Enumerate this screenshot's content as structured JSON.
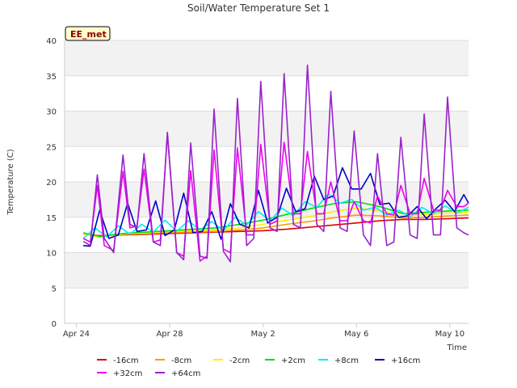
{
  "chart_data": {
    "type": "line",
    "title": "Soil/Water Temperature Set 1",
    "xlabel": "Time",
    "ylabel": "Temperature (C)",
    "badge": "EE_met",
    "x_unit": "day",
    "xlim": [
      -0.5,
      16.8
    ],
    "ylim": [
      0,
      40
    ],
    "yticks": [
      0,
      5,
      10,
      15,
      20,
      25,
      30,
      35,
      40
    ],
    "xticks": [
      {
        "label": "Apr 24",
        "day": 0
      },
      {
        "label": "Apr 28",
        "day": 4
      },
      {
        "label": "May 2",
        "day": 8
      },
      {
        "label": "May 6",
        "day": 12
      },
      {
        "label": "May 10",
        "day": 16
      }
    ],
    "grid": true,
    "legend_position": "bottom",
    "series": [
      {
        "name": "-16cm",
        "color": "#dd0000",
        "x": [
          0.3,
          1,
          2,
          3,
          4,
          5,
          6,
          7,
          8,
          9,
          10,
          11,
          12,
          13,
          14,
          15,
          16,
          16.8
        ],
        "y": [
          12.6,
          12.4,
          12.5,
          12.6,
          12.7,
          12.8,
          12.9,
          13.0,
          13.1,
          13.3,
          13.6,
          13.9,
          14.2,
          14.5,
          14.7,
          14.7,
          14.8,
          14.9
        ]
      },
      {
        "name": "-8cm",
        "color": "#ff9900",
        "x": [
          0.3,
          1,
          2,
          3,
          4,
          5,
          6,
          7,
          8,
          9,
          10,
          11,
          12,
          13,
          14,
          15,
          16,
          16.8
        ],
        "y": [
          12.6,
          12.3,
          12.6,
          12.7,
          12.8,
          12.9,
          13.0,
          13.2,
          13.5,
          14.0,
          14.4,
          14.9,
          15.3,
          15.2,
          14.9,
          15.0,
          15.2,
          15.3
        ]
      },
      {
        "name": "-2cm",
        "color": "#ffee00",
        "x": [
          0.3,
          1,
          2,
          3,
          4,
          5,
          6,
          7,
          8,
          9,
          10,
          11,
          12,
          13,
          14,
          15,
          16,
          16.8
        ],
        "y": [
          12.6,
          12.2,
          12.6,
          12.8,
          13.0,
          13.1,
          13.2,
          13.5,
          14.0,
          14.6,
          15.1,
          15.8,
          16.3,
          15.9,
          15.1,
          15.4,
          15.6,
          15.7
        ]
      },
      {
        "name": "+2cm",
        "color": "#00dd00",
        "x": [
          0.3,
          1,
          2,
          3,
          4,
          5,
          6,
          7,
          8,
          9,
          10,
          11,
          12,
          13,
          14,
          15,
          16,
          16.8
        ],
        "y": [
          12.8,
          12.3,
          12.7,
          12.9,
          13.1,
          13.3,
          13.5,
          14.0,
          14.6,
          15.4,
          16.2,
          16.9,
          17.2,
          16.5,
          15.5,
          15.7,
          15.9,
          16.0
        ]
      },
      {
        "name": "+8cm",
        "color": "#00eeee",
        "x": [
          0.3,
          0.8,
          1.3,
          1.8,
          2.3,
          2.8,
          3.3,
          3.8,
          4.3,
          4.8,
          5.3,
          5.8,
          6.3,
          6.8,
          7.3,
          7.8,
          8.3,
          8.8,
          9.3,
          9.8,
          10.3,
          10.8,
          11.3,
          11.8,
          12.3,
          12.8,
          13.3,
          13.8,
          14.3,
          14.8,
          15.3,
          15.8,
          16.3,
          16.8
        ],
        "y": [
          12.0,
          13.5,
          12.2,
          13.8,
          12.6,
          14.0,
          12.9,
          14.6,
          13.0,
          14.5,
          13.2,
          14.4,
          13.1,
          15.0,
          13.9,
          15.8,
          14.5,
          16.3,
          15.2,
          17.2,
          16.4,
          18.3,
          17.0,
          17.5,
          16.0,
          16.4,
          15.3,
          16.0,
          15.1,
          16.4,
          15.5,
          16.6,
          15.6,
          16.4
        ]
      },
      {
        "name": "+16cm",
        "color": "#0000cc",
        "x": [
          0.3,
          0.6,
          1.0,
          1.4,
          1.8,
          2.2,
          2.6,
          3.0,
          3.4,
          3.8,
          4.2,
          4.6,
          5.0,
          5.4,
          5.8,
          6.2,
          6.6,
          7.0,
          7.4,
          7.8,
          8.2,
          8.6,
          9.0,
          9.4,
          9.8,
          10.2,
          10.6,
          11.0,
          11.4,
          11.8,
          12.2,
          12.6,
          13.0,
          13.4,
          13.8,
          14.2,
          14.6,
          15.0,
          15.4,
          15.8,
          16.2,
          16.6,
          16.8
        ],
        "y": [
          11.0,
          10.9,
          16.0,
          12.0,
          12.5,
          17.0,
          13.0,
          13.2,
          17.3,
          12.4,
          13.2,
          18.4,
          12.8,
          13.0,
          15.8,
          11.9,
          16.9,
          14.0,
          13.5,
          18.8,
          14.2,
          15.0,
          19.1,
          15.8,
          16.2,
          20.8,
          17.5,
          18.0,
          22.0,
          19.0,
          19.0,
          21.2,
          16.8,
          17.0,
          15.0,
          15.2,
          16.5,
          14.8,
          16.2,
          17.4,
          15.8,
          18.2,
          17.0
        ]
      },
      {
        "name": "+32cm",
        "color": "#ee00ee",
        "x": [
          0.3,
          0.6,
          0.9,
          1.2,
          1.6,
          2.0,
          2.3,
          2.6,
          2.9,
          3.3,
          3.6,
          3.9,
          4.3,
          4.6,
          4.9,
          5.3,
          5.6,
          5.9,
          6.3,
          6.6,
          6.9,
          7.3,
          7.6,
          7.9,
          8.3,
          8.6,
          8.9,
          9.3,
          9.6,
          9.9,
          10.3,
          10.6,
          10.9,
          11.3,
          11.6,
          11.9,
          12.3,
          12.6,
          12.9,
          13.3,
          13.6,
          13.9,
          14.3,
          14.6,
          14.9,
          15.3,
          15.6,
          15.9,
          16.3,
          16.6,
          16.8
        ],
        "y": [
          12.0,
          11.5,
          19.5,
          11.0,
          10.3,
          21.5,
          13.5,
          13.8,
          21.8,
          11.5,
          11.8,
          26.7,
          10.0,
          9.5,
          21.6,
          8.8,
          9.5,
          24.5,
          10.5,
          10.0,
          24.8,
          12.5,
          12.5,
          25.3,
          14.0,
          14.5,
          25.6,
          15.5,
          15.5,
          24.3,
          15.5,
          15.5,
          20.0,
          14.5,
          14.5,
          17.2,
          14.5,
          14.2,
          18.0,
          15.5,
          15.3,
          19.5,
          15.5,
          15.5,
          20.5,
          16.0,
          16.0,
          18.8,
          16.5,
          16.5,
          17.0
        ]
      },
      {
        "name": "+64cm",
        "color": "#9922cc",
        "x": [
          0.3,
          0.6,
          0.9,
          1.2,
          1.6,
          2.0,
          2.3,
          2.6,
          2.9,
          3.3,
          3.6,
          3.9,
          4.3,
          4.6,
          4.9,
          5.3,
          5.6,
          5.9,
          6.3,
          6.6,
          6.9,
          7.3,
          7.6,
          7.9,
          8.3,
          8.6,
          8.9,
          9.3,
          9.6,
          9.9,
          10.3,
          10.6,
          10.9,
          11.3,
          11.6,
          11.9,
          12.3,
          12.6,
          12.9,
          13.3,
          13.6,
          13.9,
          14.3,
          14.6,
          14.9,
          15.3,
          15.6,
          15.9,
          16.3,
          16.6,
          16.8
        ],
        "y": [
          11.6,
          11.0,
          21.0,
          12.0,
          10.0,
          23.8,
          14.0,
          13.5,
          24.0,
          11.5,
          11.0,
          27.0,
          10.0,
          9.0,
          25.5,
          9.5,
          9.2,
          30.3,
          10.2,
          8.7,
          31.8,
          11.0,
          12.0,
          34.2,
          13.5,
          13.0,
          35.3,
          14.0,
          13.5,
          36.5,
          14.0,
          13.0,
          32.8,
          13.5,
          13.0,
          27.2,
          12.5,
          11.0,
          24.0,
          11.0,
          11.5,
          26.3,
          12.5,
          12.0,
          29.6,
          12.5,
          12.5,
          32.0,
          13.5,
          12.8,
          12.5
        ]
      }
    ]
  }
}
